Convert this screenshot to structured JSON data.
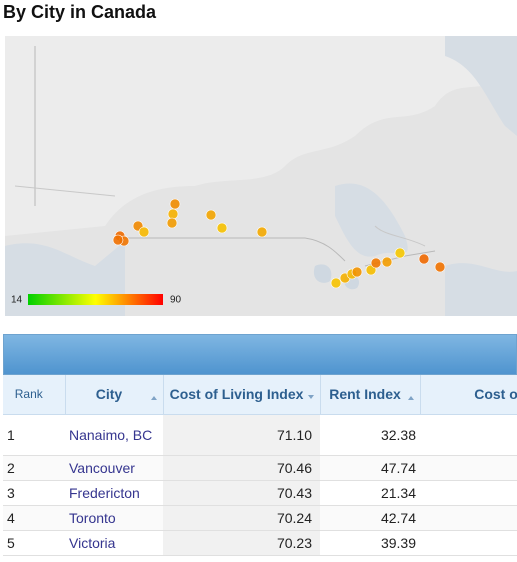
{
  "header": {
    "title": "By City in Canada"
  },
  "map": {
    "legend": {
      "min": 14,
      "max": 90
    }
  },
  "table": {
    "columns": [
      "Rank",
      "City",
      "Cost of Living Index",
      "Rent Index",
      "Cost of Li"
    ],
    "rows": [
      [
        1,
        "Nanaimo, BC",
        "71.10",
        "32.38"
      ],
      [
        2,
        "Vancouver",
        "70.46",
        "47.74"
      ],
      [
        3,
        "Fredericton",
        "70.43",
        "21.34"
      ],
      [
        4,
        "Toronto",
        "70.24",
        "42.74"
      ],
      [
        5,
        "Victoria",
        "70.23",
        "39.39"
      ]
    ]
  }
}
